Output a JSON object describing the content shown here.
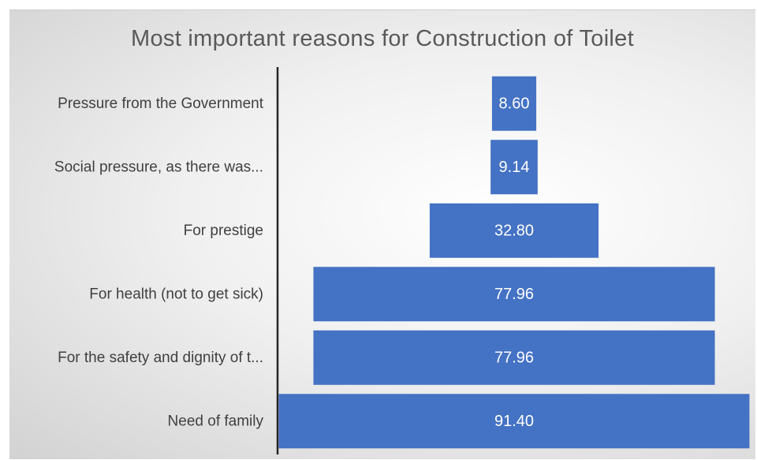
{
  "chart_data": {
    "type": "bar",
    "orientation": "horizontal-centered-funnel",
    "title": "Most important reasons for Construction of Toilet",
    "categories": [
      "Pressure from the Government",
      "Social pressure, as there was...",
      "For prestige",
      "For health (not to get sick)",
      "For the safety and dignity of t...",
      "Need of family"
    ],
    "values": [
      8.6,
      9.14,
      32.8,
      77.96,
      77.96,
      91.4
    ],
    "value_labels": [
      "8.60",
      "9.14",
      "32.80",
      "77.96",
      "77.96",
      "91.40"
    ],
    "xlabel": "",
    "ylabel": "",
    "grid": false,
    "legend": "none",
    "colors": {
      "bar": "#4472c4",
      "bar_label": "#ffffff",
      "category_label": "#404040",
      "axis_line": "#262626"
    }
  }
}
